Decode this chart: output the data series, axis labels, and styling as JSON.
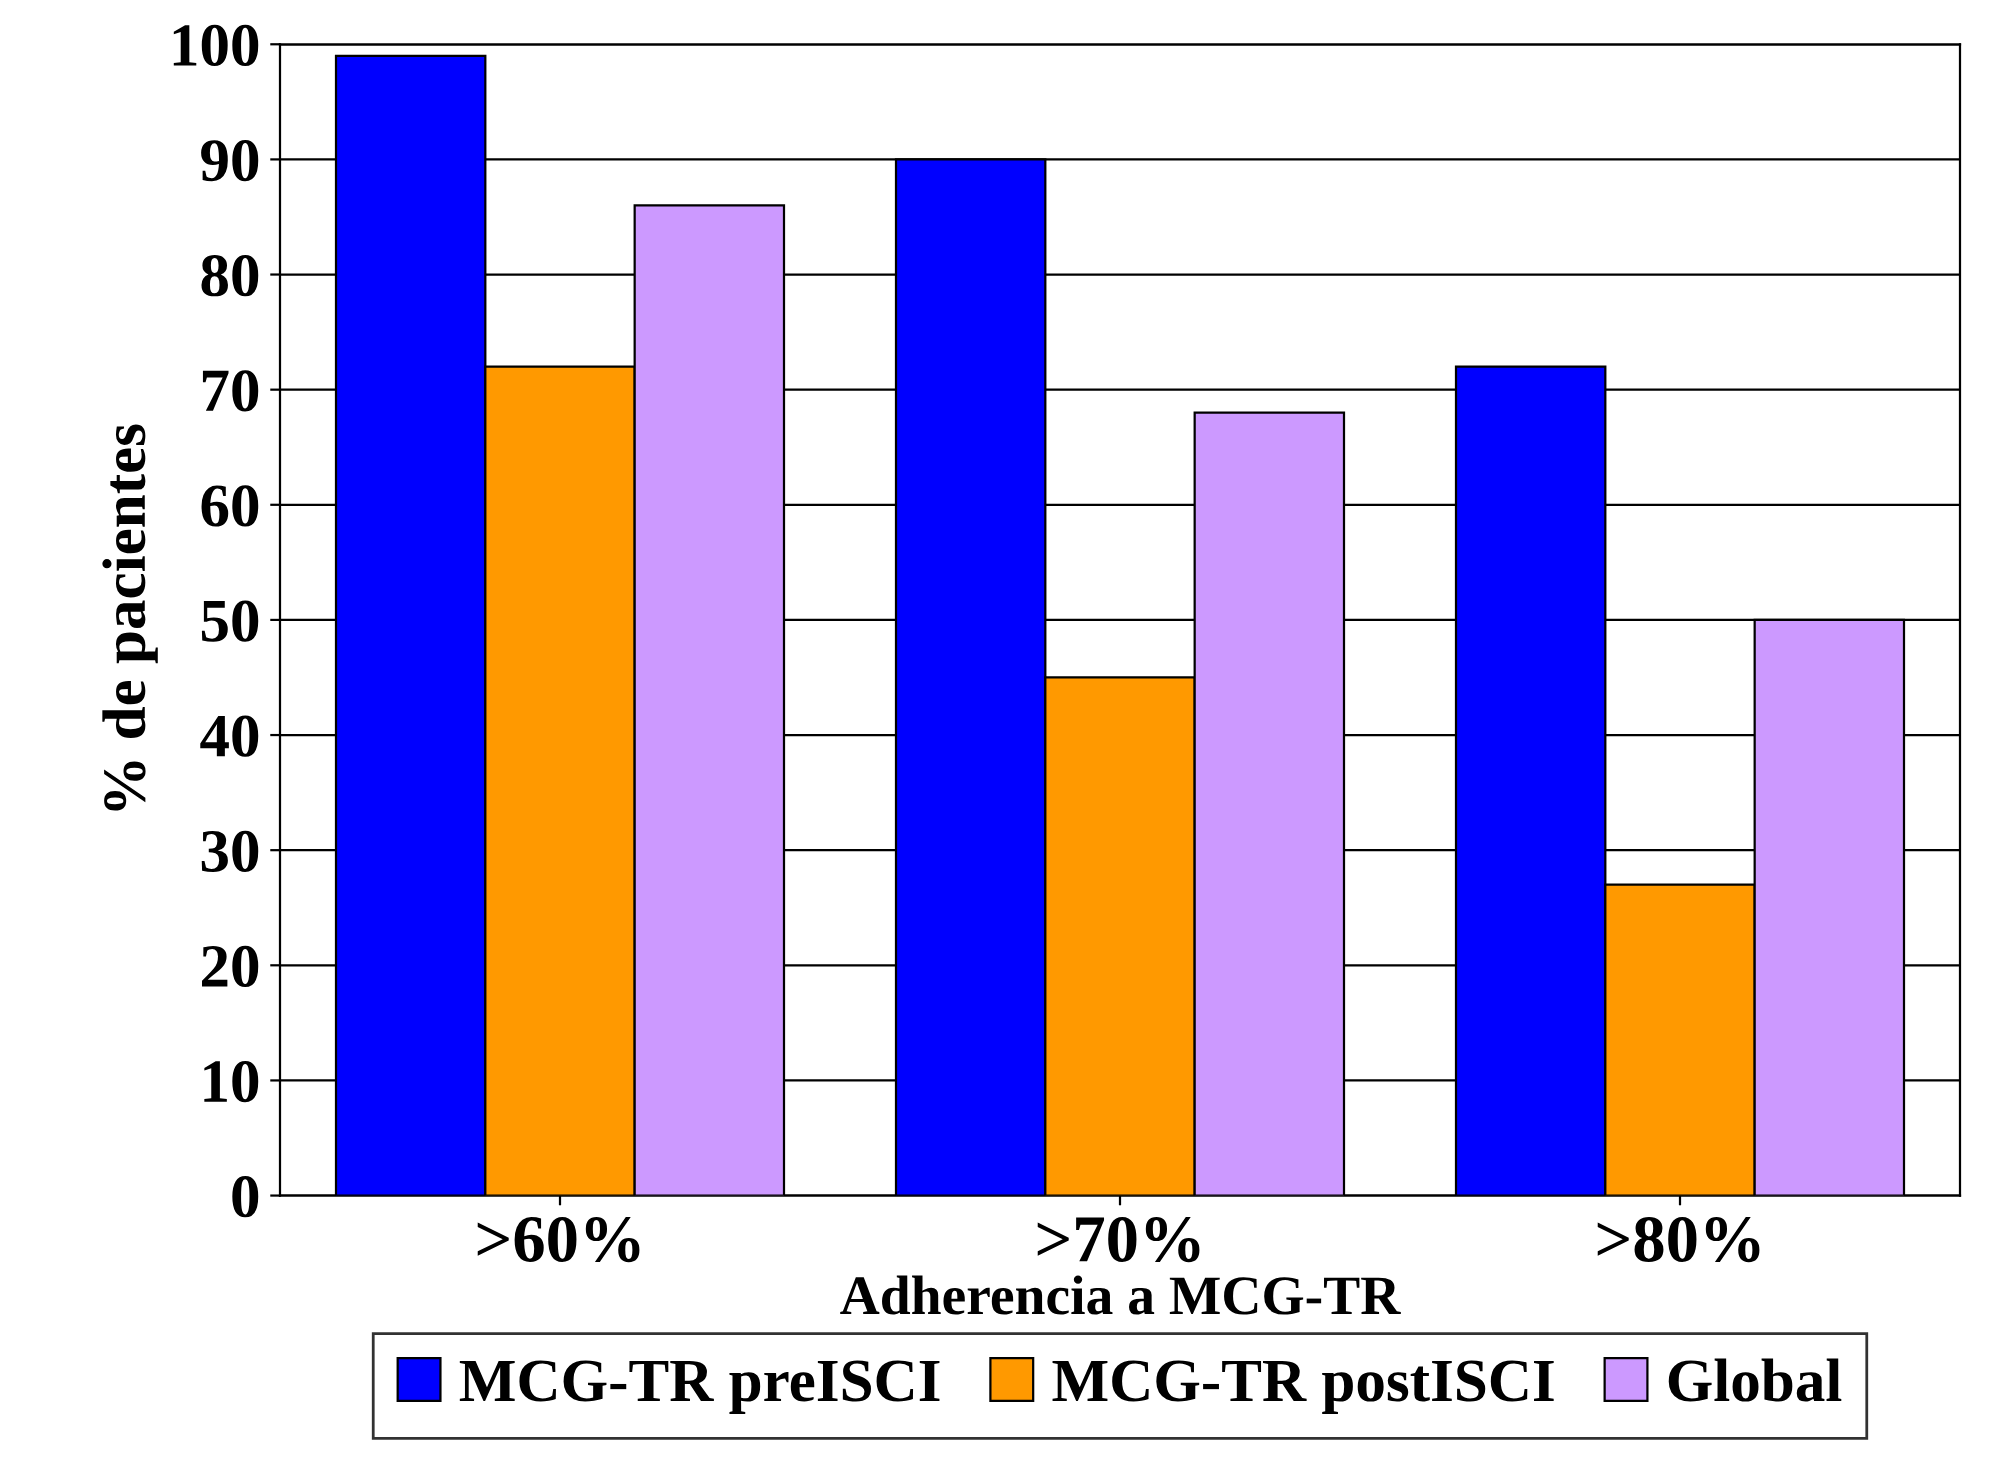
{
  "chart_data": {
    "type": "bar",
    "xlabel": "Adherencia a MCG-TR",
    "ylabel": "% de pacientes",
    "categories": [
      ">60%",
      ">70%",
      ">80%"
    ],
    "series": [
      {
        "name": "MCG-TR preISCI",
        "color": "#0000ff",
        "values": [
          99,
          90,
          72
        ]
      },
      {
        "name": "MCG-TR postISCI",
        "color": "#ff9900",
        "values": [
          72,
          45,
          27
        ]
      },
      {
        "name": "Global",
        "color": "#cc99ff",
        "values": [
          86,
          68,
          50
        ]
      }
    ],
    "ylim": [
      0,
      100
    ],
    "yticks": [
      0,
      10,
      20,
      30,
      40,
      50,
      60,
      70,
      80,
      90,
      100
    ],
    "grid": "y",
    "legend": "bottom"
  }
}
